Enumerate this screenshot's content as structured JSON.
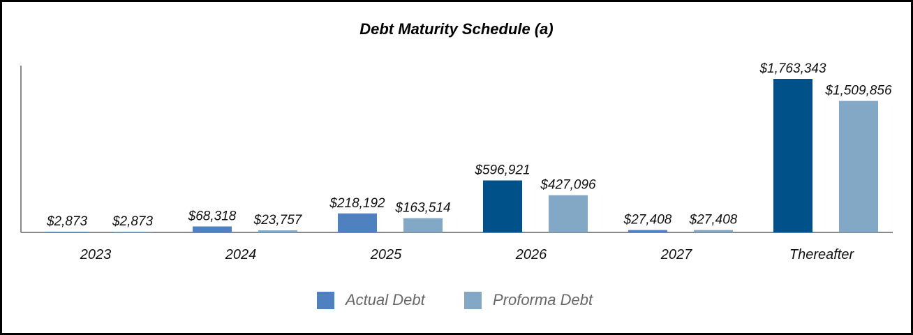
{
  "chart_data": {
    "type": "bar",
    "title": "Debt Maturity Schedule (a)",
    "categories": [
      "2023",
      "2024",
      "2025",
      "2026",
      "2027",
      "Thereafter"
    ],
    "series": [
      {
        "name": "Actual Debt",
        "values": [
          2873,
          68318,
          218192,
          596921,
          27408,
          1763343
        ],
        "labels": [
          "$2,873",
          "$68,318",
          "$218,192",
          "$596,921",
          "$27,408",
          "$1,763,343"
        ]
      },
      {
        "name": "Proforma Debt",
        "values": [
          2873,
          23757,
          163514,
          427096,
          27408,
          1509856
        ],
        "labels": [
          "$2,873",
          "$23,757",
          "$163,514",
          "$427,096",
          "$27,408",
          "$1,509,856"
        ]
      }
    ],
    "bar_colors": {
      "actual_highlight": "#00508a",
      "actual_standard": "#4f80c0",
      "proforma": "#82a8c6"
    },
    "ylim": [
      0,
      1763343
    ],
    "grid": false,
    "legend_position": "bottom-center"
  }
}
